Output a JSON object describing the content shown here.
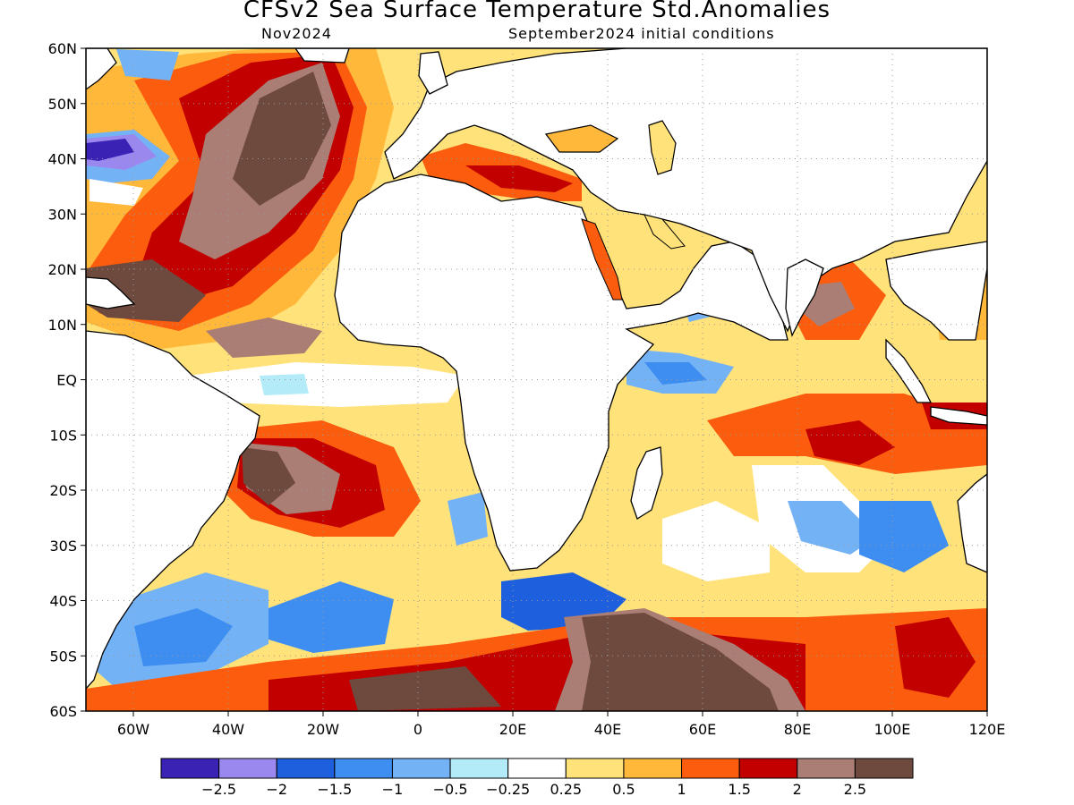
{
  "header": {
    "title": "CFSv2 Sea Surface Temperature Std.Anomalies",
    "target_month": "Nov2024",
    "initial_conditions": "September2024 initial conditions"
  },
  "map": {
    "projection": "cylindrical-equidistant",
    "lon_range": [
      -70,
      120
    ],
    "lat_range": [
      -60,
      60
    ],
    "lat_labels": [
      "60N",
      "50N",
      "40N",
      "30N",
      "20N",
      "10N",
      "EQ",
      "10S",
      "20S",
      "30S",
      "40S",
      "50S",
      "60S"
    ],
    "lon_labels": [
      "60W",
      "40W",
      "20W",
      "0",
      "20E",
      "40E",
      "60E",
      "80E",
      "100E",
      "120E"
    ],
    "grid": "dotted"
  },
  "colorbar": {
    "labels": [
      "-2.5",
      "-2",
      "-1.5",
      "-1",
      "-0.5",
      "-0.25",
      "0.25",
      "0.5",
      "1",
      "1.5",
      "2",
      "2.5"
    ],
    "colors": [
      "#3a22b5",
      "#9b88ee",
      "#1e5fdd",
      "#3d8ef0",
      "#74b2f6",
      "#b3ecf8",
      "#ffffff",
      "#ffe27a",
      "#ffb83a",
      "#fb5c0d",
      "#c20000",
      "#aa7e74",
      "#6e4a3e"
    ]
  },
  "palette": {
    "land": "#ffffff",
    "coast": "#000000"
  }
}
